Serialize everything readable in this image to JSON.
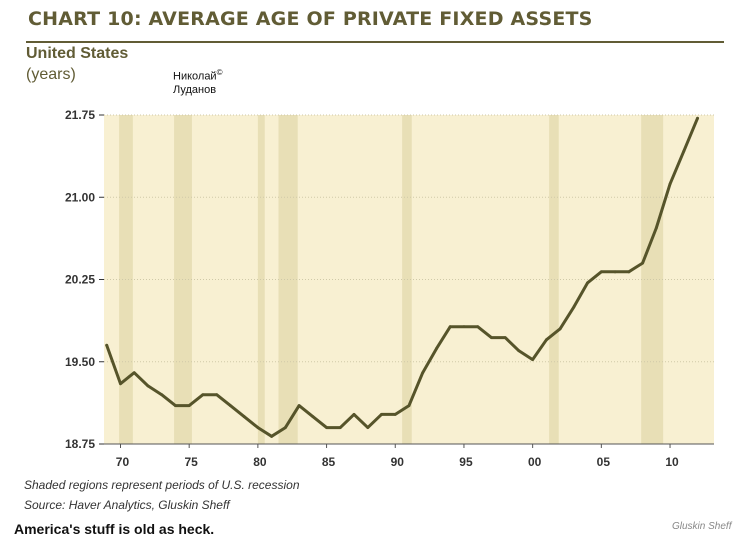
{
  "header": {
    "title": "CHART 10: AVERAGE AGE OF PRIVATE FIXED ASSETS",
    "subtitle": "United States",
    "units": "(years)",
    "author_line1": "Николай",
    "author_copy": "©",
    "author_line2": "Луданов"
  },
  "notes": {
    "recession_note": "Shaded regions represent periods of U.S. recession",
    "source": "Source: Haver Analytics, Gluskin Sheff"
  },
  "caption": "America's stuff is old as heck.",
  "credit": "Gluskin Sheff",
  "colors": {
    "title": "#615c35",
    "line": "#56542a",
    "plot_bg": "#f8f0d2",
    "recession": "#e8dfb6",
    "grid": "#cfc9a8"
  },
  "chart_data": {
    "type": "line",
    "title": "CHART 10: AVERAGE AGE OF PRIVATE FIXED ASSETS",
    "subtitle": "United States",
    "ylabel": "(years)",
    "xlabel": "",
    "xlim": [
      1968.8,
      2013.2
    ],
    "ylim": [
      18.75,
      21.75
    ],
    "yticks": [
      18.75,
      19.5,
      20.25,
      21.0,
      21.75
    ],
    "ytick_labels": [
      "18.75",
      "19.50",
      "20.25",
      "21.00",
      "21.75"
    ],
    "xticks": [
      1970,
      1975,
      1980,
      1985,
      1990,
      1995,
      2000,
      2005,
      2010
    ],
    "xtick_labels": [
      "70",
      "75",
      "80",
      "85",
      "90",
      "95",
      "00",
      "05",
      "10"
    ],
    "recessions": [
      [
        1969.9,
        1970.9
      ],
      [
        1973.9,
        1975.2
      ],
      [
        1980.0,
        1980.5
      ],
      [
        1981.5,
        1982.9
      ],
      [
        1990.5,
        1991.2
      ],
      [
        2001.2,
        2001.9
      ],
      [
        2007.9,
        2009.5
      ]
    ],
    "series": [
      {
        "name": "Average age of private fixed assets",
        "x": [
          1969,
          1970,
          1971,
          1972,
          1973,
          1974,
          1975,
          1976,
          1977,
          1978,
          1979,
          1980,
          1981,
          1982,
          1983,
          1984,
          1985,
          1986,
          1987,
          1988,
          1989,
          1990,
          1991,
          1992,
          1993,
          1994,
          1995,
          1996,
          1997,
          1998,
          1999,
          2000,
          2001,
          2002,
          2003,
          2004,
          2005,
          2006,
          2007,
          2008,
          2009,
          2010,
          2011,
          2012
        ],
        "values": [
          19.65,
          19.3,
          19.4,
          19.28,
          19.2,
          19.1,
          19.1,
          19.2,
          19.2,
          19.1,
          19.0,
          18.9,
          18.82,
          18.9,
          19.1,
          19.0,
          18.9,
          18.9,
          19.02,
          18.9,
          19.02,
          19.02,
          19.1,
          19.4,
          19.62,
          19.82,
          19.82,
          19.82,
          19.72,
          19.72,
          19.6,
          19.52,
          19.7,
          19.8,
          20.0,
          20.22,
          20.32,
          20.32,
          20.32,
          20.4,
          20.72,
          21.12,
          21.42,
          21.72
        ]
      }
    ]
  }
}
